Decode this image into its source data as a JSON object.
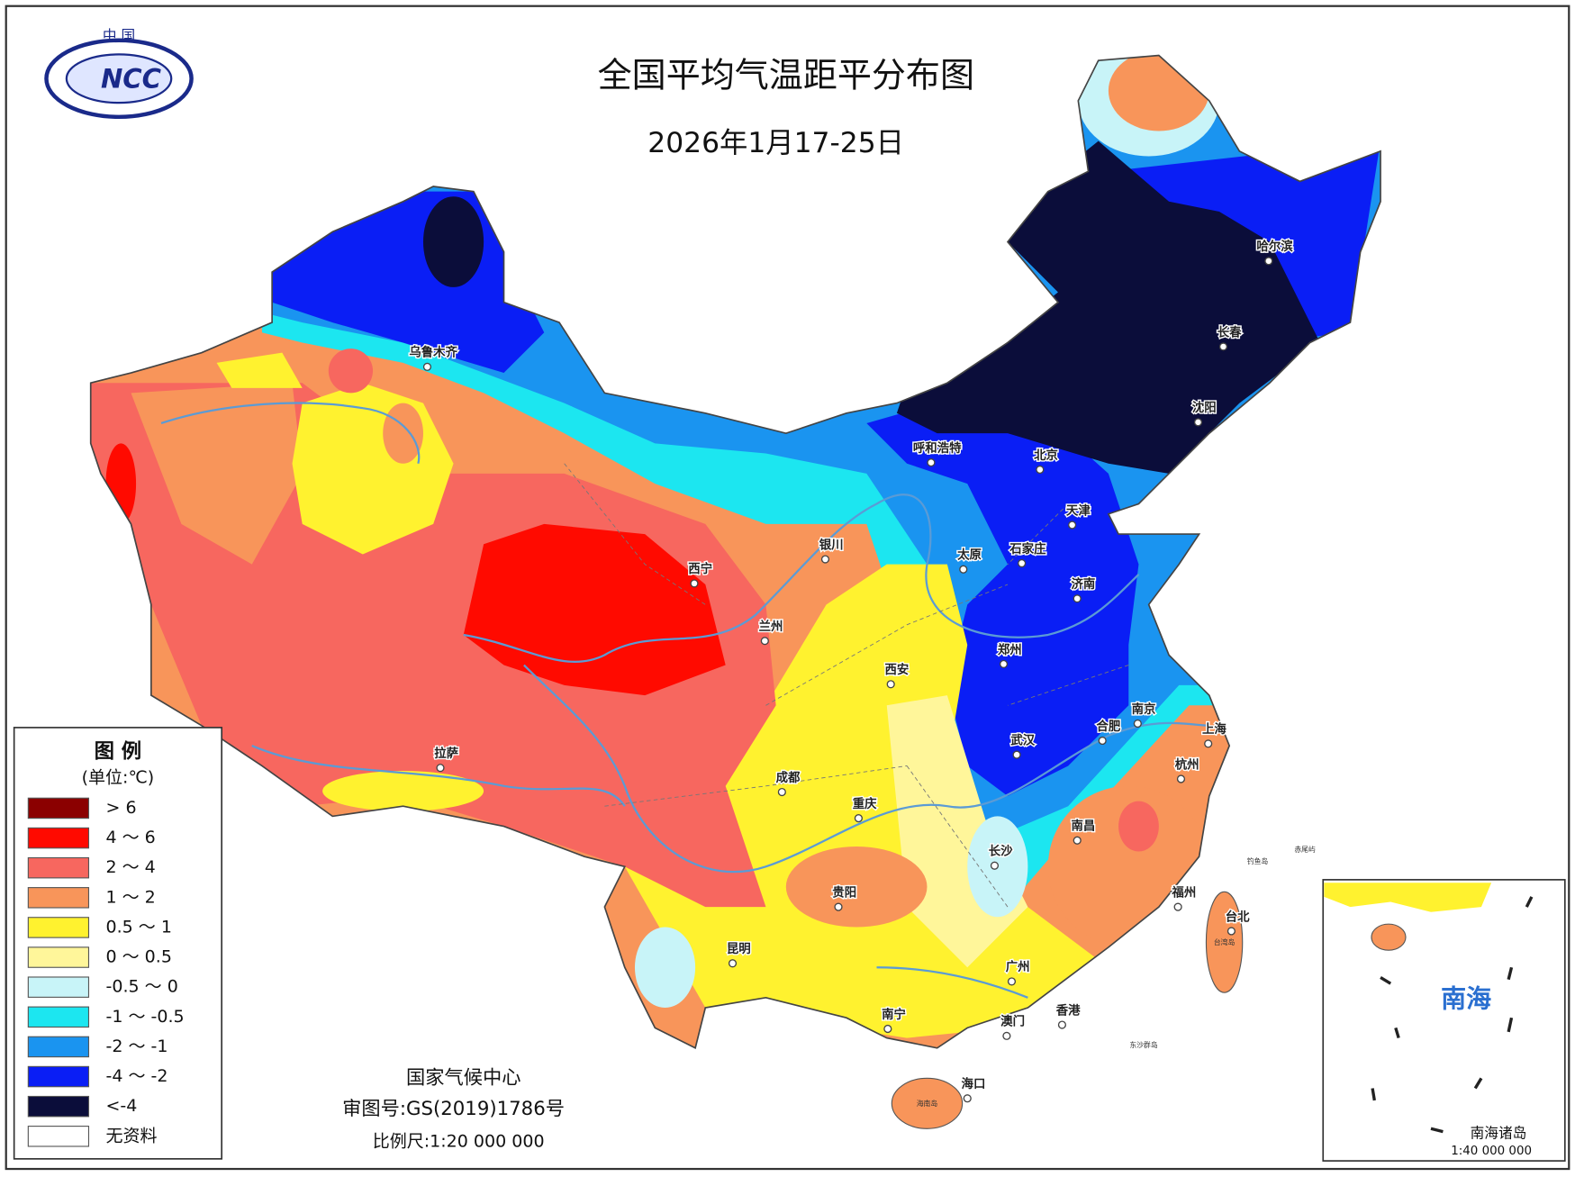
{
  "header": {
    "title": "全国平均气温距平分布图",
    "date": "2026年1月17-25日"
  },
  "logo": {
    "country": "中 国",
    "abbr": "NCC"
  },
  "legend": {
    "title": "图 例",
    "unit": "(单位:℃)",
    "items": [
      {
        "label": "> 6",
        "color": "#8b0000"
      },
      {
        "label": "4 ～ 6",
        "color": "#ff0a00"
      },
      {
        "label": "2 ～ 4",
        "color": "#f7675f"
      },
      {
        "label": "1 ～ 2",
        "color": "#f8955a"
      },
      {
        "label": "0.5 ～ 1",
        "color": "#fff22f"
      },
      {
        "label": "0 ～ 0.5",
        "color": "#fff69a"
      },
      {
        "label": "-0.5 ～ 0",
        "color": "#c8f4f8"
      },
      {
        "label": "-1 ～ -0.5",
        "color": "#1ce6f0"
      },
      {
        "label": "-2 ～ -1",
        "color": "#1a94f0"
      },
      {
        "label": "-4 ～ -2",
        "color": "#0a1ef5"
      },
      {
        "label": "<-4",
        "color": "#0b0d3a"
      },
      {
        "label": "无资料",
        "color": "#ffffff"
      }
    ]
  },
  "cities": [
    "乌鲁木齐",
    "哈尔滨",
    "长春",
    "沈阳",
    "呼和浩特",
    "北京",
    "天津",
    "石家庄",
    "太原",
    "银川",
    "西宁",
    "兰州",
    "济南",
    "郑州",
    "西安",
    "南京",
    "合肥",
    "上海",
    "武汉",
    "杭州",
    "成都",
    "拉萨",
    "重庆",
    "南昌",
    "长沙",
    "福州",
    "贵阳",
    "台北",
    "昆明",
    "广州",
    "南宁",
    "香港",
    "澳门",
    "海口"
  ],
  "islands": [
    "台湾岛",
    "海南岛",
    "东沙群岛",
    "钓鱼岛",
    "赤尾屿"
  ],
  "credits": {
    "org": "国家气候中心",
    "approval": "审图号:GS(2019)1786号",
    "scale": "比例尺:1:20 000 000"
  },
  "inset": {
    "sea": "南海",
    "islands": "南海诸岛",
    "scale": "1:40 000 000"
  }
}
